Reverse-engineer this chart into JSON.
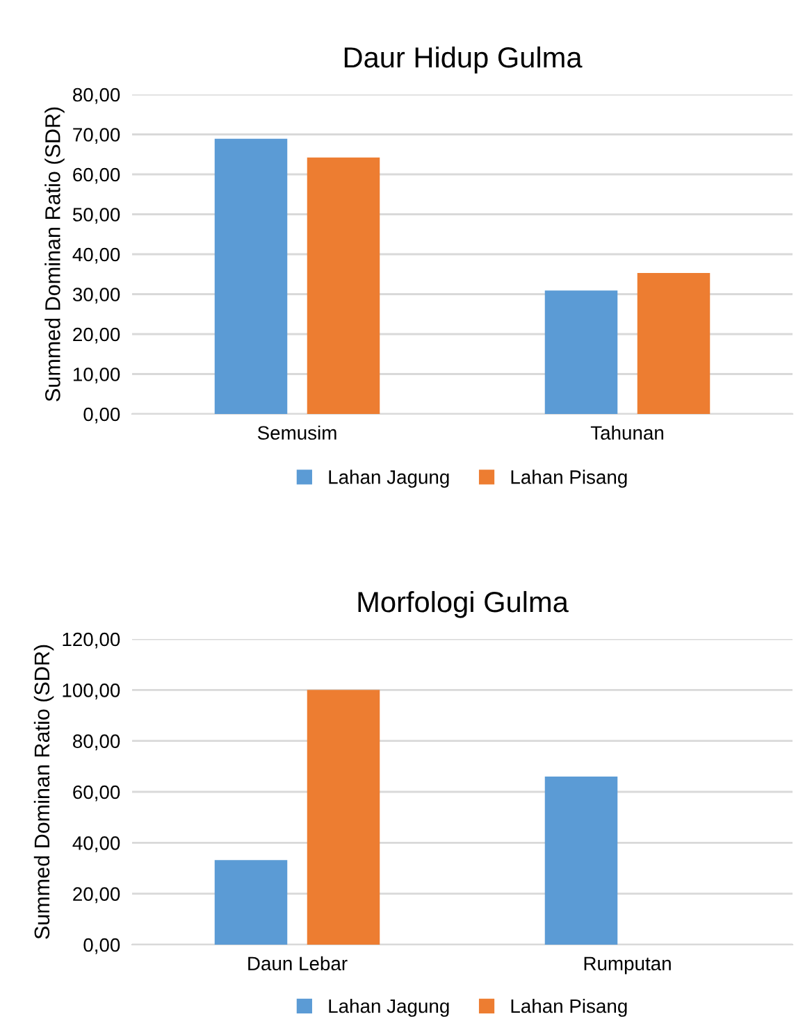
{
  "chart_data": [
    {
      "type": "bar",
      "title": "Daur Hidup Gulma",
      "ylabel": "Summed Dominan Ratio (SDR)",
      "categories": [
        "Semusim",
        "Tahunan"
      ],
      "series": [
        {
          "name": "Lahan Jagung",
          "color": "#5b9bd5",
          "values": [
            68.9,
            30.9
          ]
        },
        {
          "name": "Lahan Pisang",
          "color": "#ed7d31",
          "values": [
            64.2,
            35.3
          ]
        }
      ],
      "ylim": [
        0,
        80
      ],
      "yticks": [
        {
          "value": 0,
          "label": "0,00"
        },
        {
          "value": 10,
          "label": "10,00"
        },
        {
          "value": 20,
          "label": "20,00"
        },
        {
          "value": 30,
          "label": "30,00"
        },
        {
          "value": 40,
          "label": "40,00"
        },
        {
          "value": 50,
          "label": "50,00"
        },
        {
          "value": 60,
          "label": "60,00"
        },
        {
          "value": 70,
          "label": "70,00"
        },
        {
          "value": 80,
          "label": "80,00"
        }
      ],
      "grid": "y",
      "legend": "bottom"
    },
    {
      "type": "bar",
      "title": "Morfologi Gulma",
      "ylabel": "Summed Dominan Ratio (SDR)",
      "categories": [
        "Daun Lebar",
        "Rumputan"
      ],
      "series": [
        {
          "name": "Lahan Jagung",
          "color": "#5b9bd5",
          "values": [
            33.2,
            66.0
          ]
        },
        {
          "name": "Lahan Pisang",
          "color": "#ed7d31",
          "values": [
            100,
            0
          ]
        }
      ],
      "ylim": [
        0,
        120
      ],
      "yticks": [
        {
          "value": 0,
          "label": "0,00"
        },
        {
          "value": 20,
          "label": "20,00"
        },
        {
          "value": 40,
          "label": "40,00"
        },
        {
          "value": 60,
          "label": "60,00"
        },
        {
          "value": 80,
          "label": "80,00"
        },
        {
          "value": 100,
          "label": "100,00"
        },
        {
          "value": 120,
          "label": "120,00"
        }
      ],
      "grid": "y",
      "legend": "bottom"
    }
  ]
}
